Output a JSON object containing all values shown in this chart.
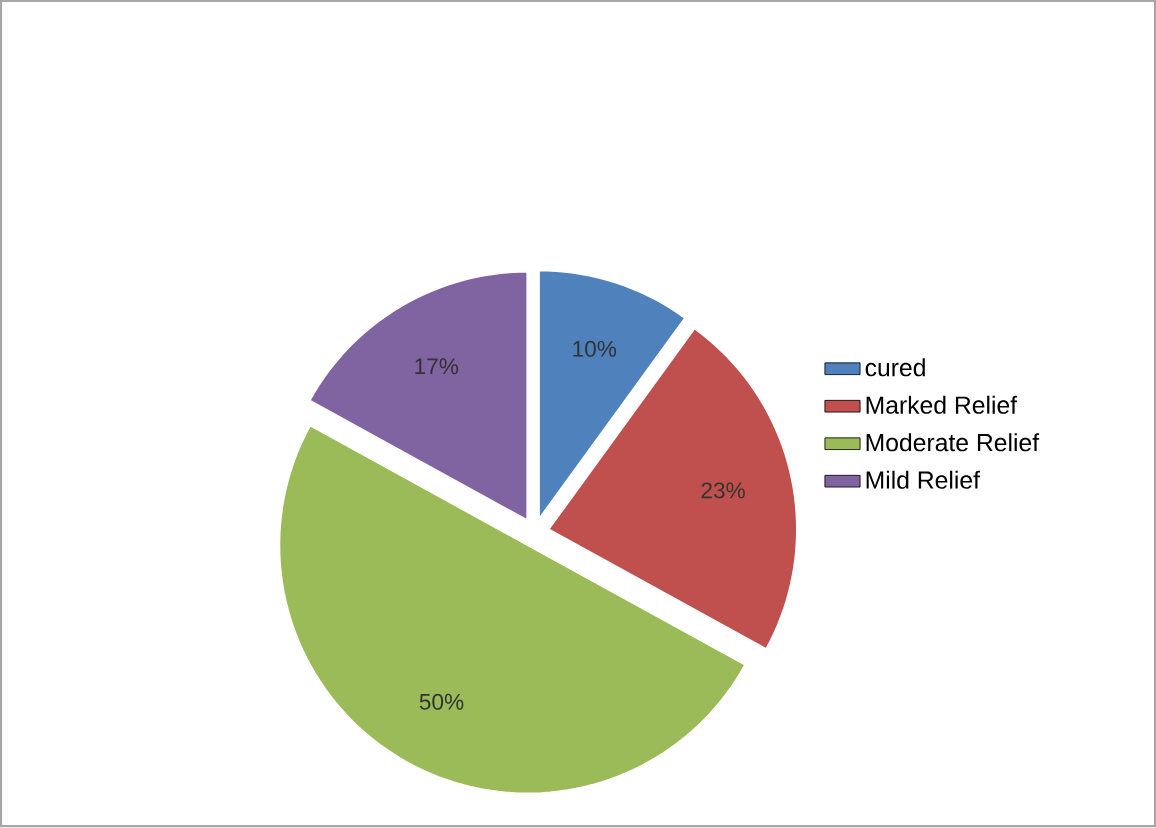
{
  "chart_data": {
    "type": "pie",
    "categories": [
      "cured",
      "Marked Relief",
      "Moderate Relief",
      "Mild Relief"
    ],
    "values": [
      10,
      23,
      50,
      17
    ],
    "colors": [
      "#4f81bd",
      "#c0504d",
      "#9bbb59",
      "#8064a2"
    ],
    "value_labels": [
      "10%",
      "23%",
      "50%",
      "17%"
    ],
    "legend": "right"
  }
}
